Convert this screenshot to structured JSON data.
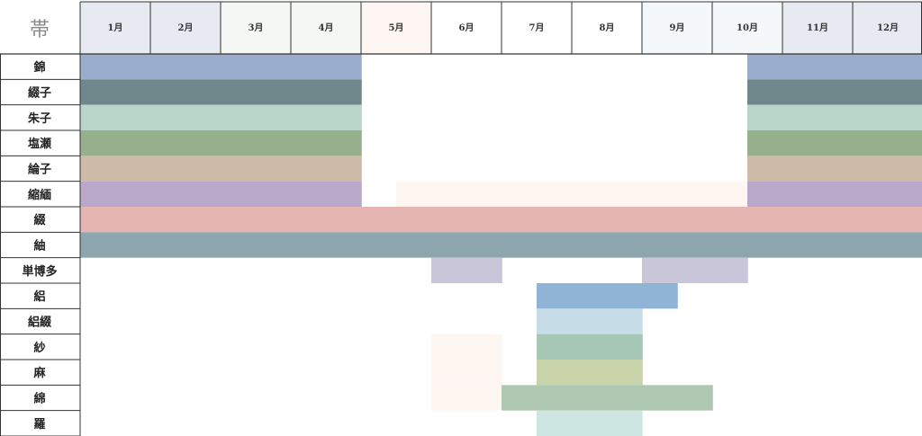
{
  "chart_data": {
    "type": "table",
    "corner_label": "帯",
    "months": [
      "1月",
      "2月",
      "3月",
      "4月",
      "5月",
      "6月",
      "7月",
      "8月",
      "9月",
      "10月",
      "11月",
      "12月"
    ],
    "month_colors": [
      "#e8eaf2",
      "#e8eaf2",
      "#f4f7f3",
      "#f4f7f3",
      "#fdf6f2",
      "#ffffff",
      "#ffffff",
      "#ffffff",
      "#f5f8fa",
      "#f5f8fa",
      "#e8eaf2",
      "#e8eaf2"
    ],
    "rows": [
      {
        "label": "錦",
        "bars": [
          {
            "start": 1,
            "end": 5.0,
            "color": "#9aadcd"
          },
          {
            "start": 10.5,
            "end": 12.99,
            "color": "#9aadcd"
          }
        ]
      },
      {
        "label": "綴子",
        "bars": [
          {
            "start": 1,
            "end": 5.0,
            "color": "#70888c"
          },
          {
            "start": 10.5,
            "end": 12.99,
            "color": "#70888c"
          }
        ]
      },
      {
        "label": "朱子",
        "bars": [
          {
            "start": 1,
            "end": 5.0,
            "color": "#b8d5c9"
          },
          {
            "start": 10.5,
            "end": 12.99,
            "color": "#b8d5c9"
          }
        ]
      },
      {
        "label": "塩瀬",
        "bars": [
          {
            "start": 1,
            "end": 5.0,
            "color": "#97b08c"
          },
          {
            "start": 10.5,
            "end": 12.99,
            "color": "#97b08c"
          }
        ]
      },
      {
        "label": "綸子",
        "bars": [
          {
            "start": 1,
            "end": 5.0,
            "color": "#cdbaa8"
          },
          {
            "start": 10.5,
            "end": 12.99,
            "color": "#cdbaa8"
          }
        ]
      },
      {
        "label": "縮緬",
        "bars": [
          {
            "start": 1,
            "end": 5.0,
            "color": "#b9a8c9"
          },
          {
            "start": 5.5,
            "end": 10.5,
            "color": "#fdf6f1"
          },
          {
            "start": 10.5,
            "end": 12.99,
            "color": "#b9a8c9"
          }
        ]
      },
      {
        "label": "綴",
        "bars": [
          {
            "start": 1,
            "end": 12.99,
            "color": "#e5b6b1"
          }
        ]
      },
      {
        "label": "紬",
        "bars": [
          {
            "start": 1,
            "end": 12.99,
            "color": "#8da6ae"
          }
        ]
      },
      {
        "label": "単博多",
        "bars": [
          {
            "start": 6,
            "end": 6.5,
            "color": "#c8c6d8"
          },
          {
            "start": 6.5,
            "end": 7,
            "color": "#c8c6d8"
          },
          {
            "start": 9,
            "end": 10.5,
            "color": "#c8c6d8"
          }
        ]
      },
      {
        "label": "絽",
        "bars": [
          {
            "start": 7.5,
            "end": 9.5,
            "color": "#8fb4d6"
          }
        ]
      },
      {
        "label": "絽綴",
        "bars": [
          {
            "start": 7.5,
            "end": 9,
            "color": "#c6dce6"
          }
        ]
      },
      {
        "label": "紗",
        "bars": [
          {
            "start": 6,
            "end": 7,
            "color": "#fdf6f1"
          },
          {
            "start": 7.5,
            "end": 9,
            "color": "#a6c6b6"
          }
        ]
      },
      {
        "label": "麻",
        "bars": [
          {
            "start": 6,
            "end": 7,
            "color": "#fdf6f1"
          },
          {
            "start": 7.5,
            "end": 9,
            "color": "#c9d3aa"
          }
        ]
      },
      {
        "label": "綿",
        "bars": [
          {
            "start": 6,
            "end": 7,
            "color": "#fdf6f1"
          },
          {
            "start": 7,
            "end": 10,
            "color": "#aec8b1"
          }
        ]
      },
      {
        "label": "羅",
        "bars": [
          {
            "start": 7.5,
            "end": 9,
            "color": "#cde6e2"
          }
        ]
      }
    ]
  }
}
